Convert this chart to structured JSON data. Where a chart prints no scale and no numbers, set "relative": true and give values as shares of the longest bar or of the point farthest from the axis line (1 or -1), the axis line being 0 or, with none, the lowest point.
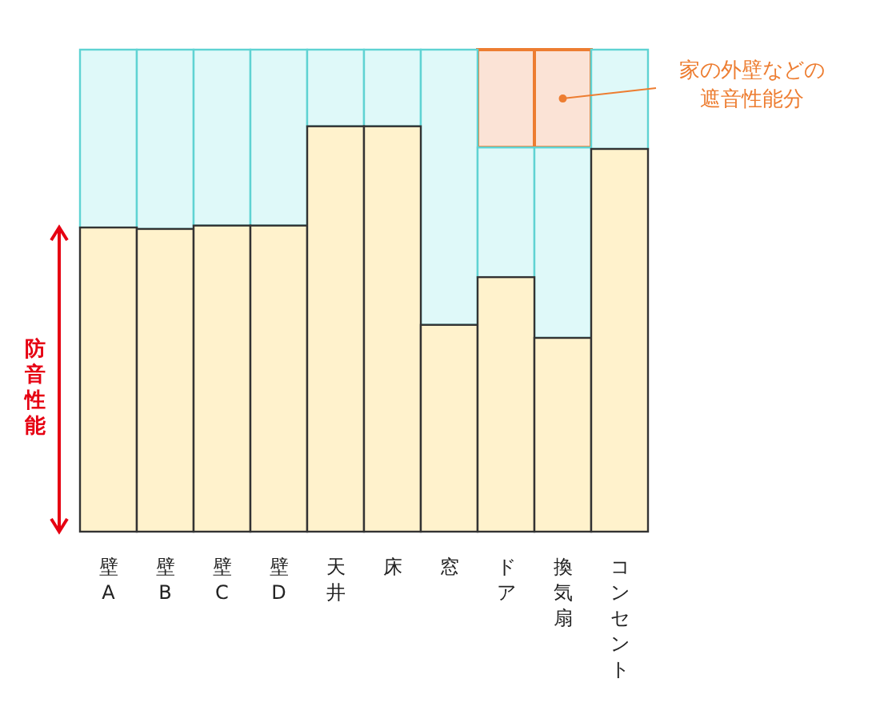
{
  "chart_data": {
    "type": "bar",
    "relative": true,
    "stacked": true,
    "ylabel": "防音性能",
    "categories": [
      "壁A",
      "壁B",
      "壁C",
      "壁D",
      "天井",
      "床",
      "窓",
      "ドア",
      "換気扇",
      "コンセント"
    ],
    "series": [
      {
        "color": "#fff2cc",
        "values": [
          0.631,
          0.628,
          0.635,
          0.635,
          0.841,
          0.841,
          0.429,
          0.528,
          0.402,
          0.794
        ]
      },
      {
        "color": "#dff9f9",
        "values": [
          0.369,
          0.372,
          0.365,
          0.365,
          0.159,
          0.159,
          0.571,
          0.269,
          0.395,
          0.206
        ]
      },
      {
        "color": "#fbe3d6",
        "values": [
          0,
          0,
          0,
          0,
          0,
          0,
          0,
          0.203,
          0.203,
          0
        ]
      }
    ],
    "annotations": [
      "家の外壁などの",
      "遮音性能分"
    ]
  }
}
